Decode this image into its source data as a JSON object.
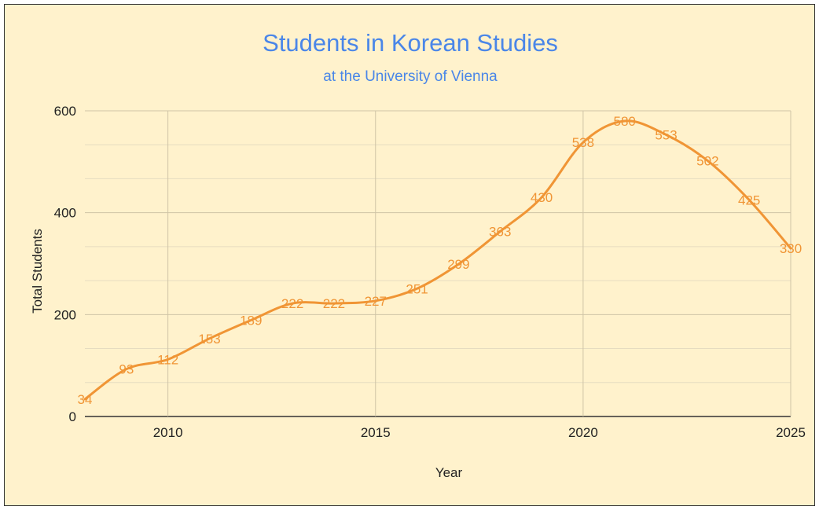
{
  "chart_data": {
    "type": "line",
    "title": "Students in Korean Studies",
    "subtitle": "at the University of Vienna",
    "xlabel": "Year",
    "ylabel": "Total Students",
    "x": [
      2008,
      2009,
      2010,
      2011,
      2012,
      2013,
      2014,
      2015,
      2016,
      2017,
      2018,
      2019,
      2020,
      2021,
      2022,
      2023,
      2024,
      2025
    ],
    "series": [
      {
        "values": [
          34,
          93,
          112,
          153,
          189,
          222,
          222,
          227,
          251,
          299,
          363,
          430,
          538,
          580,
          553,
          502,
          425,
          330
        ]
      }
    ],
    "xticks": [
      "2010",
      "2015",
      "2020",
      "2025"
    ],
    "yticks": [
      "0",
      "200",
      "400",
      "600"
    ],
    "xlim": [
      2008,
      2025
    ],
    "ylim": [
      0,
      600
    ],
    "grid": true,
    "line_color": "#f09535",
    "title_color": "#4a86e8",
    "background": "#fff2cc"
  }
}
